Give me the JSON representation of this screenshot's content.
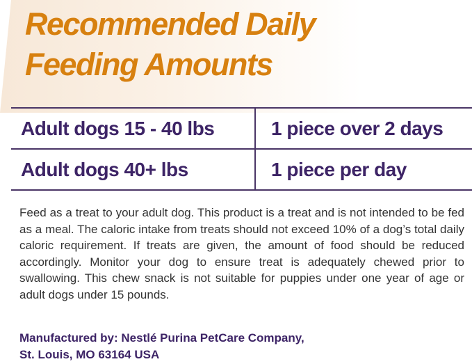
{
  "title": {
    "line1": "Recommended Daily",
    "line2": "Feeding Amounts"
  },
  "colors": {
    "title": "#d7800f",
    "table_text": "#3d2466",
    "body_text": "#333333"
  },
  "table": {
    "rows": [
      {
        "weight": "Adult dogs 15 - 40 lbs",
        "amount": "1 piece over 2 days"
      },
      {
        "weight": "Adult dogs 40+ lbs",
        "amount": "1 piece per day"
      }
    ]
  },
  "description": "Feed as a treat to your adult dog. This product is a treat and is not intended to be fed as a meal. The caloric intake from treats should not exceed 10% of a dog’s total daily caloric requirement. If treats are given, the amount of food should be reduced accordingly. Monitor your dog to ensure treat is adequately chewed prior to swallowing. This chew snack is not suitable for puppies under one year of age or adult dogs under 15 pounds.",
  "manufacturer": {
    "line1": "Manufactured by: Nestlé Purina PetCare Company,",
    "line2": "St. Louis, MO 63164 USA"
  }
}
